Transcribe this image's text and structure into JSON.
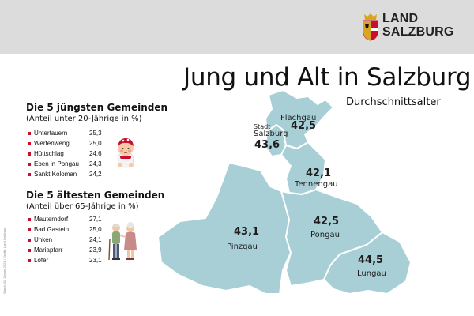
{
  "header": {
    "logo_line1": "LAND",
    "logo_line2": "SALZBURG",
    "colors": {
      "band": "#dcdcdc",
      "shield_red": "#c8102e",
      "shield_gold": "#d9a521"
    }
  },
  "title": "Jung und Alt in Salzburg",
  "subtitle": "Durchschnittsalter",
  "side_note": "Stand: 01. Jänner 2021 | Grafik: Land Salzburg",
  "youngest": {
    "title": "Die 5 jüngsten Gemeinden",
    "subtitle": "(Anteil unter 20-Jährige in %)",
    "items": [
      {
        "name": "Untertauern",
        "value": "25,3"
      },
      {
        "name": "Werfenweng",
        "value": "25,0"
      },
      {
        "name": "Hüttschlag",
        "value": "24,6"
      },
      {
        "name": "Eben in Pongau",
        "value": "24,3"
      },
      {
        "name": "Sankt Koloman",
        "value": "24,2"
      }
    ],
    "illustration": "baby-icon"
  },
  "oldest": {
    "title": "Die 5 ältesten Gemeinden",
    "subtitle": "(Anteil über 65-Jährige in %)",
    "items": [
      {
        "name": "Mauterndorf",
        "value": "27,1"
      },
      {
        "name": "Bad Gastein",
        "value": "25,0"
      },
      {
        "name": "Unken",
        "value": "24,1"
      },
      {
        "name": "Mariapfarr",
        "value": "23,9"
      },
      {
        "name": "Lofer",
        "value": "23,1"
      }
    ],
    "illustration": "elderly-couple-icon"
  },
  "map": {
    "fill_color": "#a9cfd6",
    "border_color": "#ffffff",
    "regions": [
      {
        "id": "stadt-salzburg",
        "label_prefix": "Stadt",
        "name": "Salzburg",
        "value": "43,6"
      },
      {
        "id": "flachgau",
        "name": "Flachgau",
        "value": "42,5"
      },
      {
        "id": "tennengau",
        "name": "Tennengau",
        "value": "42,1"
      },
      {
        "id": "pongau",
        "name": "Pongau",
        "value": "42,5"
      },
      {
        "id": "pinzgau",
        "name": "Pinzgau",
        "value": "43,1"
      },
      {
        "id": "lungau",
        "name": "Lungau",
        "value": "44,5"
      }
    ]
  }
}
